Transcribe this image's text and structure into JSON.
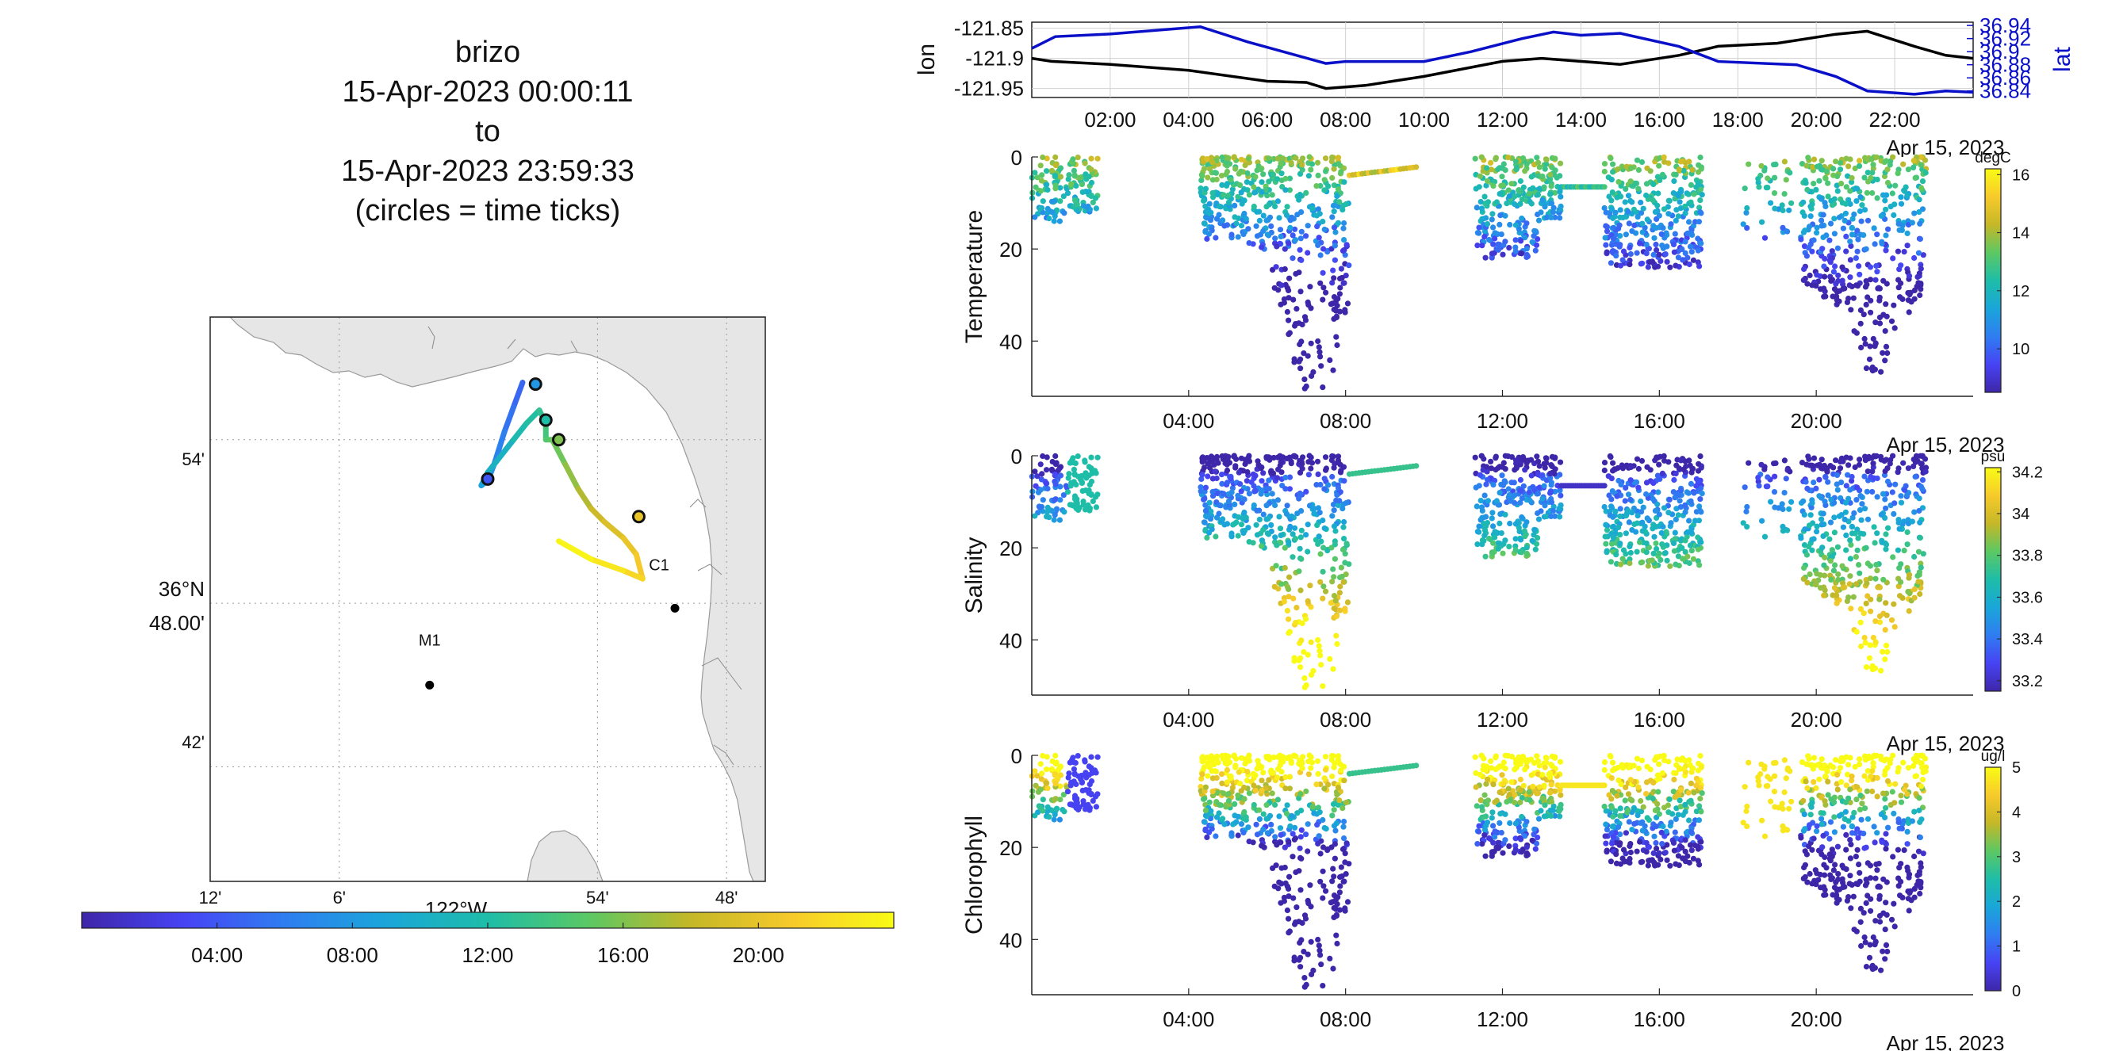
{
  "title": {
    "platform": "brizo",
    "start": "15-Apr-2023 00:00:11",
    "to": "to",
    "end": "15-Apr-2023 23:59:33",
    "note": "(circles = time ticks)"
  },
  "colors": {
    "parula": [
      "#3e26a8",
      "#4743f4",
      "#2f7df1",
      "#1aa6d9",
      "#1ebda8",
      "#5cc863",
      "#c5b727",
      "#f7ca2b",
      "#f9fb15"
    ],
    "land": "#e6e6e6",
    "lon_line": "#000000",
    "lat_line": "#0a10c8"
  },
  "chart_data": [
    {
      "id": "track_map",
      "type": "scatter",
      "xlabel": "122°W",
      "ylabel": "",
      "x_ticks": [
        "12'",
        "6'",
        "54'",
        "48'"
      ],
      "y_ticks": [
        "54'",
        "36°N 48.00'",
        "42'"
      ],
      "xlim": [
        -122.2,
        -121.77
      ],
      "ylim": [
        36.63,
        36.975
      ],
      "stations": [
        {
          "name": "C1",
          "lon": -121.84,
          "lat": 36.797
        },
        {
          "name": "M1",
          "lon": -122.03,
          "lat": 36.75
        }
      ],
      "track": [
        {
          "lon": -121.958,
          "lat": 36.935,
          "hour": 4.5
        },
        {
          "lon": -121.965,
          "lat": 36.92,
          "hour": 5.2
        },
        {
          "lon": -121.972,
          "lat": 36.905,
          "hour": 5.8
        },
        {
          "lon": -121.98,
          "lat": 36.885,
          "hour": 6.8
        },
        {
          "lon": -121.985,
          "lat": 36.875,
          "hour": 7.5
        },
        {
          "lon": -121.99,
          "lat": 36.872,
          "hour": 8.0
        },
        {
          "lon": -121.985,
          "lat": 36.88,
          "hour": 9.5
        },
        {
          "lon": -121.965,
          "lat": 36.9,
          "hour": 11.2
        },
        {
          "lon": -121.955,
          "lat": 36.91,
          "hour": 12.0
        },
        {
          "lon": -121.945,
          "lat": 36.918,
          "hour": 12.5
        },
        {
          "lon": -121.94,
          "lat": 36.91,
          "hour": 13.5
        },
        {
          "lon": -121.94,
          "lat": 36.9,
          "hour": 14.2
        },
        {
          "lon": -121.935,
          "lat": 36.9,
          "hour": 15.0
        },
        {
          "lon": -121.925,
          "lat": 36.885,
          "hour": 16.0
        },
        {
          "lon": -121.915,
          "lat": 36.87,
          "hour": 17.0
        },
        {
          "lon": -121.905,
          "lat": 36.858,
          "hour": 18.0
        },
        {
          "lon": -121.895,
          "lat": 36.85,
          "hour": 19.0
        },
        {
          "lon": -121.88,
          "lat": 36.84,
          "hour": 19.8
        },
        {
          "lon": -121.87,
          "lat": 36.83,
          "hour": 20.5
        },
        {
          "lon": -121.865,
          "lat": 36.815,
          "hour": 21.3
        },
        {
          "lon": -121.88,
          "lat": 36.82,
          "hour": 22.2
        },
        {
          "lon": -121.905,
          "lat": 36.827,
          "hour": 23.2
        },
        {
          "lon": -121.93,
          "lat": 36.838,
          "hour": 23.9
        }
      ],
      "time_ticks": [
        {
          "lon": -121.985,
          "lat": 36.876,
          "hour": 4
        },
        {
          "lon": -121.948,
          "lat": 36.934,
          "hour": 8
        },
        {
          "lon": -121.94,
          "lat": 36.912,
          "hour": 12
        },
        {
          "lon": -121.93,
          "lat": 36.9,
          "hour": 16
        },
        {
          "lon": -121.868,
          "lat": 36.853,
          "hour": 20
        }
      ],
      "colorbar": {
        "ticks": [
          "04:00",
          "08:00",
          "12:00",
          "16:00",
          "20:00"
        ],
        "range": [
          0,
          24
        ]
      }
    },
    {
      "id": "lonlat",
      "type": "line",
      "ylabel": "lon",
      "ylabel_right": "lat",
      "x_ticks": [
        "02:00",
        "04:00",
        "06:00",
        "08:00",
        "10:00",
        "12:00",
        "14:00",
        "16:00",
        "18:00",
        "20:00",
        "22:00"
      ],
      "x_date": "Apr 15, 2023",
      "y_ticks": [
        "-121.85",
        "-121.9",
        "-121.95"
      ],
      "y_ticks_right": [
        "36.94",
        "36.92",
        "36.9",
        "36.88",
        "36.86",
        "36.84"
      ],
      "ylim": [
        -121.965,
        -121.84
      ],
      "ylim_right": [
        36.83,
        36.945
      ],
      "series": [
        {
          "values": [
            [
              0,
              -121.9
            ],
            [
              0.5,
              -121.905
            ],
            [
              2,
              -121.91
            ],
            [
              4,
              -121.92
            ],
            [
              6,
              -121.938
            ],
            [
              7,
              -121.94
            ],
            [
              7.5,
              -121.95
            ],
            [
              8.5,
              -121.945
            ],
            [
              10,
              -121.93
            ],
            [
              12,
              -121.905
            ],
            [
              13,
              -121.9
            ],
            [
              15,
              -121.91
            ],
            [
              16.5,
              -121.895
            ],
            [
              17.5,
              -121.88
            ],
            [
              19,
              -121.875
            ],
            [
              20.5,
              -121.86
            ],
            [
              21.3,
              -121.855
            ],
            [
              22.5,
              -121.88
            ],
            [
              23.3,
              -121.895
            ],
            [
              24,
              -121.9
            ]
          ]
        },
        {
          "values": [
            [
              0,
              36.905
            ],
            [
              0.6,
              36.923
            ],
            [
              2,
              36.927
            ],
            [
              4.3,
              36.938
            ],
            [
              5.5,
              36.915
            ],
            [
              7.5,
              36.882
            ],
            [
              8,
              36.885
            ],
            [
              10,
              36.885
            ],
            [
              11.2,
              36.9
            ],
            [
              12.5,
              36.92
            ],
            [
              13.3,
              36.93
            ],
            [
              14,
              36.925
            ],
            [
              15,
              36.928
            ],
            [
              16.5,
              36.908
            ],
            [
              17.5,
              36.885
            ],
            [
              19.5,
              36.88
            ],
            [
              20.5,
              36.862
            ],
            [
              21.3,
              36.84
            ],
            [
              22.5,
              36.835
            ],
            [
              23.3,
              36.84
            ],
            [
              24,
              36.838
            ]
          ]
        }
      ]
    },
    {
      "id": "temperature",
      "type": "scatter",
      "ylabel": "Temperature",
      "x_ticks": [
        "04:00",
        "08:00",
        "12:00",
        "16:00",
        "20:00"
      ],
      "x_date": "Apr 15, 2023",
      "y_ticks": [
        "0",
        "20",
        "40"
      ],
      "ylim": [
        0,
        52
      ],
      "colorbar": {
        "unit": "degC",
        "ticks": [
          "16",
          "14",
          "12",
          "10"
        ],
        "range": [
          8.5,
          16.2
        ]
      }
    },
    {
      "id": "salinity",
      "type": "scatter",
      "ylabel": "Salinity",
      "x_ticks": [
        "04:00",
        "08:00",
        "12:00",
        "16:00",
        "20:00"
      ],
      "x_date": "Apr 15, 2023",
      "y_ticks": [
        "0",
        "20",
        "40"
      ],
      "ylim": [
        0,
        52
      ],
      "colorbar": {
        "unit": "psu",
        "ticks": [
          "34.2",
          "34",
          "33.8",
          "33.6",
          "33.4",
          "33.2"
        ],
        "range": [
          33.15,
          34.22
        ]
      }
    },
    {
      "id": "chlorophyll",
      "type": "scatter",
      "ylabel": "Chlorophyll",
      "x_ticks": [
        "04:00",
        "08:00",
        "12:00",
        "16:00",
        "20:00"
      ],
      "x_date": "Apr 15, 2023",
      "y_ticks": [
        "0",
        "20",
        "40"
      ],
      "ylim": [
        0,
        52
      ],
      "colorbar": {
        "unit": "ug/l",
        "ticks": [
          "5",
          "4",
          "3",
          "2",
          "1",
          "0"
        ],
        "range": [
          0,
          5
        ]
      }
    }
  ]
}
